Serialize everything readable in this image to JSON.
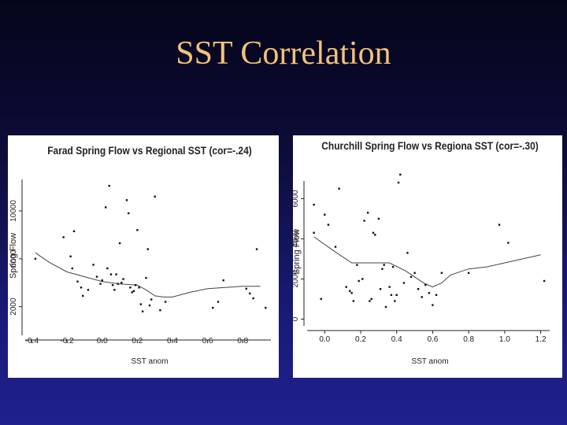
{
  "slide": {
    "title": "SST Correlation"
  },
  "colors": {
    "title": "#f2c27a",
    "ink": "#222222",
    "background_top": "#05051a",
    "background_bottom": "#20208e"
  },
  "chart_data": [
    {
      "type": "scatter",
      "title": "Farad Spring Flow vs Regional SST (cor=-.24)",
      "xlabel": "SST anom",
      "ylabel": "Spring Flow",
      "xlim": [
        -0.42,
        0.96
      ],
      "ylim": [
        0,
        12500
      ],
      "xticks": [
        -0.4,
        -0.2,
        0.0,
        0.2,
        0.4,
        0.6,
        0.8
      ],
      "xtick_labels": [
        "-0.4",
        "-0.2",
        "0.0",
        "0.2",
        "0.4",
        "0.6",
        "0.8"
      ],
      "yticks": [
        2000,
        6000,
        10000
      ],
      "ytick_labels": [
        "2000",
        "6000",
        "10000"
      ],
      "points": [
        [
          -0.38,
          6000
        ],
        [
          -0.22,
          7800
        ],
        [
          -0.18,
          6200
        ],
        [
          -0.17,
          5200
        ],
        [
          -0.16,
          8300
        ],
        [
          -0.14,
          4100
        ],
        [
          -0.12,
          3600
        ],
        [
          -0.11,
          2900
        ],
        [
          -0.08,
          3400
        ],
        [
          -0.05,
          5500
        ],
        [
          -0.03,
          4500
        ],
        [
          -0.01,
          3900
        ],
        [
          0.0,
          4200
        ],
        [
          0.02,
          10300
        ],
        [
          0.03,
          5200
        ],
        [
          0.04,
          12100
        ],
        [
          0.05,
          4700
        ],
        [
          0.06,
          3800
        ],
        [
          0.07,
          3400
        ],
        [
          0.08,
          4700
        ],
        [
          0.09,
          3900
        ],
        [
          0.1,
          7300
        ],
        [
          0.11,
          4000
        ],
        [
          0.12,
          4300
        ],
        [
          0.14,
          10900
        ],
        [
          0.15,
          9800
        ],
        [
          0.16,
          3600
        ],
        [
          0.17,
          3200
        ],
        [
          0.18,
          3300
        ],
        [
          0.19,
          3800
        ],
        [
          0.2,
          8400
        ],
        [
          0.21,
          3600
        ],
        [
          0.22,
          2200
        ],
        [
          0.23,
          1600
        ],
        [
          0.25,
          4400
        ],
        [
          0.26,
          6800
        ],
        [
          0.27,
          2100
        ],
        [
          0.28,
          2600
        ],
        [
          0.3,
          11200
        ],
        [
          0.33,
          1700
        ],
        [
          0.36,
          2400
        ],
        [
          0.63,
          1900
        ],
        [
          0.66,
          2400
        ],
        [
          0.69,
          4200
        ],
        [
          0.82,
          3500
        ],
        [
          0.84,
          3100
        ],
        [
          0.86,
          2700
        ],
        [
          0.88,
          6800
        ],
        [
          0.93,
          1900
        ]
      ],
      "smooth": [
        [
          -0.38,
          6500
        ],
        [
          -0.3,
          5700
        ],
        [
          -0.2,
          4900
        ],
        [
          -0.1,
          4500
        ],
        [
          0.0,
          4100
        ],
        [
          0.1,
          3900
        ],
        [
          0.2,
          3800
        ],
        [
          0.25,
          3400
        ],
        [
          0.3,
          2900
        ],
        [
          0.35,
          2800
        ],
        [
          0.4,
          2800
        ],
        [
          0.5,
          3200
        ],
        [
          0.6,
          3500
        ],
        [
          0.7,
          3600
        ],
        [
          0.8,
          3700
        ],
        [
          0.9,
          3700
        ]
      ]
    },
    {
      "type": "scatter",
      "title": "Churchill Spring Flow vs Regiona SST (cor=-.30)",
      "xlabel": "SST anom",
      "ylabel": "Spring Flow",
      "xlim": [
        -0.08,
        1.25
      ],
      "ylim": [
        -100,
        6800
      ],
      "xticks": [
        0.0,
        0.2,
        0.4,
        0.6,
        0.8,
        1.0,
        1.2
      ],
      "xtick_labels": [
        "0.0",
        "0.2",
        "0.4",
        "0.6",
        "0.8",
        "1.0",
        "1.2"
      ],
      "yticks": [
        0,
        2000,
        4000,
        6000
      ],
      "ytick_labels": [
        "0",
        "2000",
        "4000",
        "6000"
      ],
      "points": [
        [
          -0.06,
          5700
        ],
        [
          -0.06,
          4300
        ],
        [
          -0.02,
          1000
        ],
        [
          0.0,
          5200
        ],
        [
          0.02,
          4700
        ],
        [
          0.06,
          3600
        ],
        [
          0.08,
          6500
        ],
        [
          0.12,
          1600
        ],
        [
          0.14,
          1400
        ],
        [
          0.15,
          1300
        ],
        [
          0.16,
          900
        ],
        [
          0.18,
          2700
        ],
        [
          0.19,
          1900
        ],
        [
          0.21,
          2000
        ],
        [
          0.22,
          4900
        ],
        [
          0.24,
          5300
        ],
        [
          0.25,
          900
        ],
        [
          0.26,
          1000
        ],
        [
          0.27,
          4300
        ],
        [
          0.28,
          4200
        ],
        [
          0.3,
          5000
        ],
        [
          0.31,
          1500
        ],
        [
          0.32,
          2500
        ],
        [
          0.33,
          2700
        ],
        [
          0.34,
          600
        ],
        [
          0.36,
          1600
        ],
        [
          0.37,
          1200
        ],
        [
          0.38,
          2600
        ],
        [
          0.39,
          900
        ],
        [
          0.4,
          1200
        ],
        [
          0.41,
          6800
        ],
        [
          0.42,
          7200
        ],
        [
          0.44,
          1800
        ],
        [
          0.46,
          3300
        ],
        [
          0.48,
          2100
        ],
        [
          0.5,
          2300
        ],
        [
          0.52,
          1500
        ],
        [
          0.54,
          1100
        ],
        [
          0.56,
          1700
        ],
        [
          0.58,
          1300
        ],
        [
          0.6,
          700
        ],
        [
          0.62,
          1200
        ],
        [
          0.65,
          2300
        ],
        [
          0.8,
          2300
        ],
        [
          0.97,
          4700
        ],
        [
          1.02,
          3800
        ],
        [
          1.22,
          1900
        ]
      ],
      "smooth": [
        [
          -0.06,
          4100
        ],
        [
          0.05,
          3400
        ],
        [
          0.15,
          2800
        ],
        [
          0.25,
          2800
        ],
        [
          0.3,
          2800
        ],
        [
          0.36,
          2800
        ],
        [
          0.45,
          2400
        ],
        [
          0.5,
          2100
        ],
        [
          0.55,
          1800
        ],
        [
          0.6,
          1600
        ],
        [
          0.65,
          1800
        ],
        [
          0.7,
          2200
        ],
        [
          0.8,
          2500
        ],
        [
          0.9,
          2600
        ],
        [
          1.0,
          2800
        ],
        [
          1.1,
          3000
        ],
        [
          1.2,
          3200
        ]
      ]
    }
  ]
}
